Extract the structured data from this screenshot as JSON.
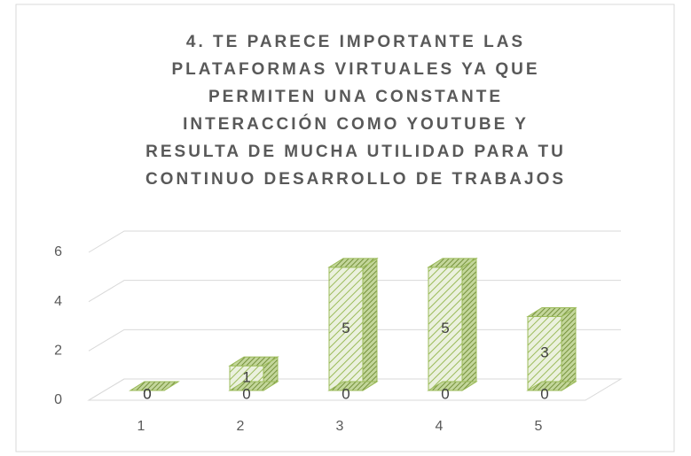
{
  "chart_data": {
    "type": "bar3d",
    "title": [
      "4. TE PARECE IMPORTANTE LAS",
      "PLATAFORMAS VIRTUALES YA QUE",
      "PERMITEN UNA CONSTANTE",
      "INTERACCIÓN COMO YOUTUBE Y",
      "RESULTA DE MUCHA UTILIDAD PARA TU",
      "CONTINUO DESARROLLO DE TRABAJOS"
    ],
    "categories": [
      "1",
      "2",
      "3",
      "4",
      "5"
    ],
    "series": [
      {
        "color": "#9bbb59",
        "values": [
          0,
          1,
          5,
          5,
          3
        ]
      },
      {
        "color": "#9bbb59",
        "values": [
          0,
          0,
          0,
          0,
          0
        ]
      }
    ],
    "ylim": [
      0,
      6
    ],
    "yticks": [
      0,
      2,
      4,
      6
    ],
    "grid": true
  }
}
